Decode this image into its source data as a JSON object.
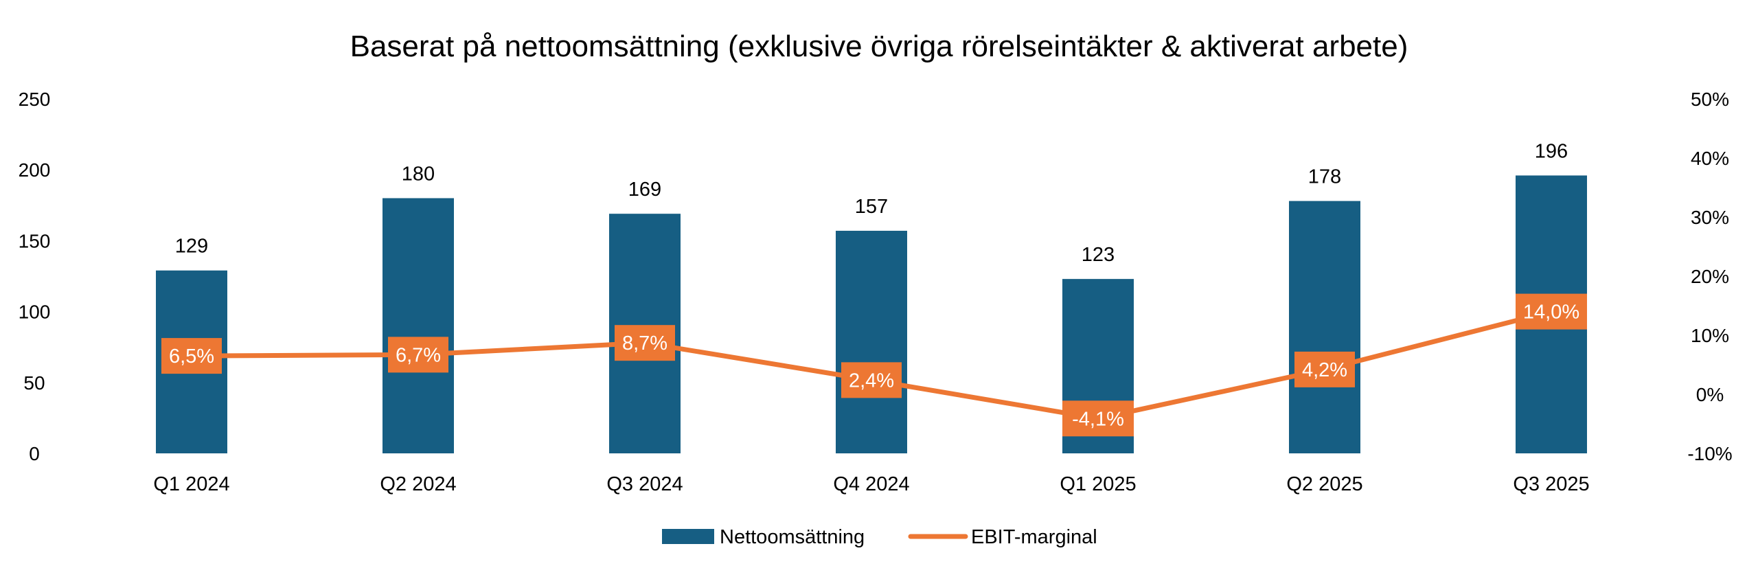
{
  "chart_data": {
    "type": "bar",
    "title": "Baserat på nettoomsättning (exklusive övriga rörelseintäkter & aktiverat arbete)",
    "categories": [
      "Q1 2024",
      "Q2 2024",
      "Q3 2024",
      "Q4 2024",
      "Q1 2025",
      "Q2 2025",
      "Q3 2025"
    ],
    "series": [
      {
        "name": "Nettoomsättning",
        "type": "bar",
        "axis": "left",
        "color": "#165E83",
        "values": [
          129,
          180,
          169,
          157,
          123,
          178,
          196
        ],
        "labels": [
          "129",
          "180",
          "169",
          "157",
          "123",
          "178",
          "196"
        ]
      },
      {
        "name": "EBIT-marginal",
        "type": "line",
        "axis": "right",
        "color": "#ED7733",
        "values": [
          6.5,
          6.7,
          8.7,
          2.4,
          -4.1,
          4.2,
          14.0
        ],
        "labels": [
          "6,5%",
          "6,7%",
          "8,7%",
          "2,4%",
          "-4,1%",
          "4,2%",
          "14,0%"
        ]
      }
    ],
    "left_axis": {
      "ylim": [
        0,
        250
      ],
      "ticks": [
        0,
        50,
        100,
        150,
        200,
        250
      ],
      "tick_labels": [
        "0",
        "50",
        "100",
        "150",
        "200",
        "250"
      ]
    },
    "right_axis": {
      "ylim": [
        -10,
        50
      ],
      "ticks": [
        -10,
        0,
        10,
        20,
        30,
        40,
        50
      ],
      "tick_labels": [
        "-10%",
        "0%",
        "10%",
        "20%",
        "30%",
        "40%",
        "50%"
      ]
    },
    "grid": false,
    "legend": "bottom-center"
  }
}
